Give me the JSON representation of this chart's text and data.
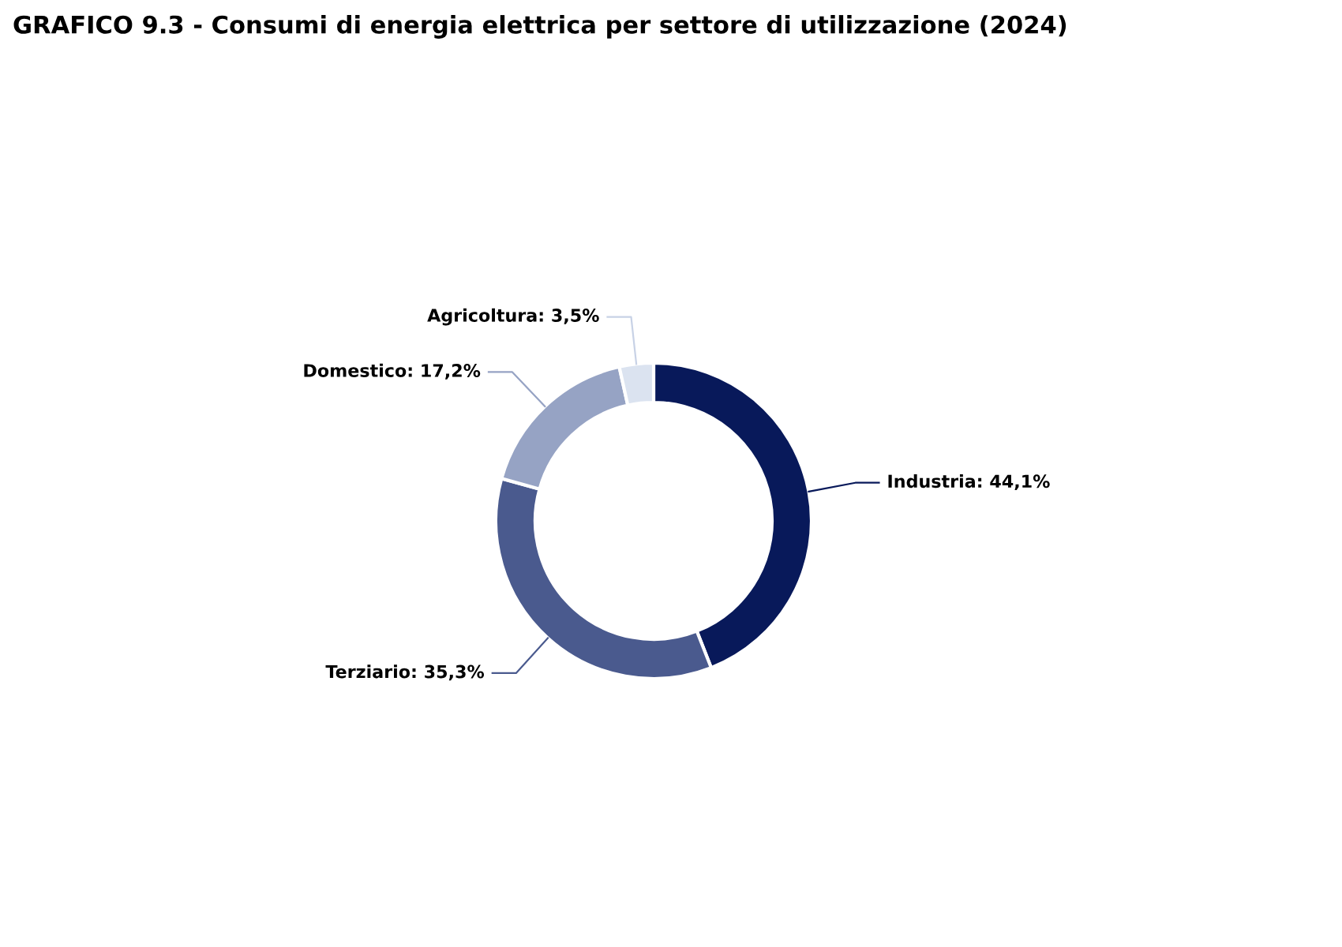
{
  "chart_data": {
    "type": "donut",
    "title": "GRAFICO 9.3 - Consumi di energia elettrica per settore di utilizzazione (2024)",
    "categories": [
      "Industria",
      "Terziario",
      "Domestico",
      "Agricoltura"
    ],
    "values": [
      44.1,
      35.3,
      17.2,
      3.5
    ],
    "value_labels": [
      "44,1%",
      "35,3%",
      "17,2%",
      "3,5%"
    ],
    "colors": [
      "#08195a",
      "#4a5a8e",
      "#96a3c4",
      "#dbe3f0"
    ],
    "legend": false
  }
}
